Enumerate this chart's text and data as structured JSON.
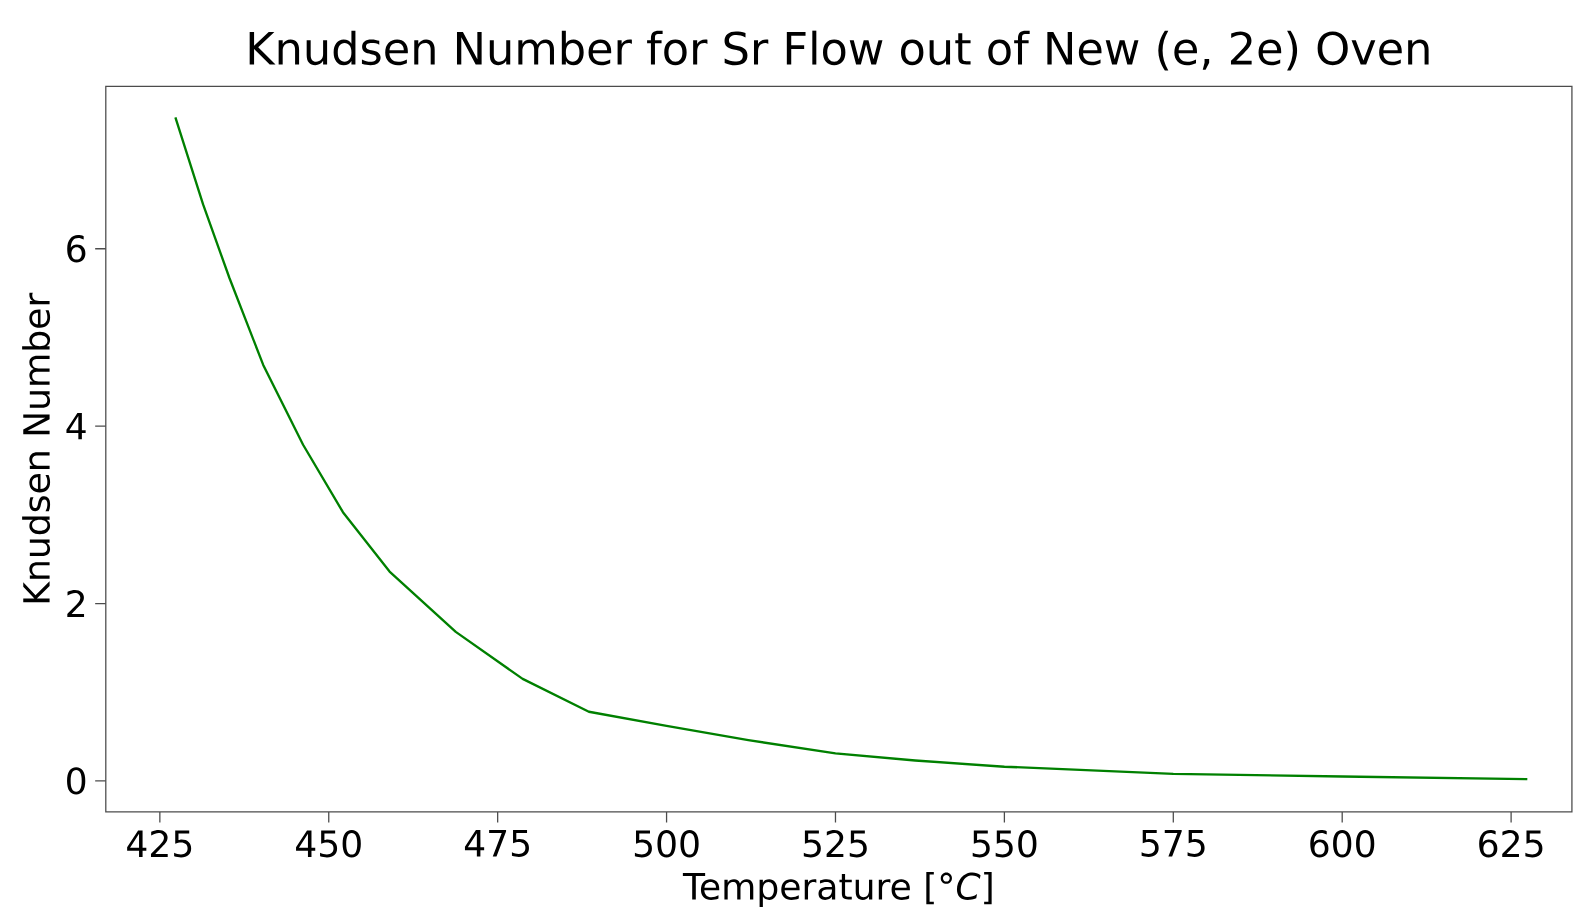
{
  "chart_data": {
    "type": "line",
    "title": "Knudsen Number for Sr Flow out of New (e, 2e) Oven",
    "xlabel": "Temperature [°*C*]",
    "ylabel": "Knudsen Number",
    "x": [
      427.3,
      431.4,
      435.3,
      440.3,
      446.2,
      452.1,
      459,
      468.8,
      478.7,
      488.5,
      500,
      512.1,
      525,
      536.8,
      550,
      575,
      600,
      627.4
    ],
    "series": [
      {
        "color": "#008000",
        "values": [
          7.48,
          6.5,
          5.67,
          4.69,
          3.79,
          3.03,
          2.36,
          1.68,
          1.15,
          0.78,
          0.62,
          0.46,
          0.31,
          0.23,
          0.16,
          0.08,
          0.05,
          0.02
        ]
      }
    ],
    "xlim": [
      417,
      634
    ],
    "ylim": [
      -0.35,
      7.83
    ],
    "xticks": [
      425,
      450,
      475,
      500,
      525,
      550,
      575,
      600,
      625
    ],
    "yticks": [
      0,
      2,
      4,
      6
    ],
    "grid": false,
    "marker": "none",
    "line_style": "solid"
  }
}
